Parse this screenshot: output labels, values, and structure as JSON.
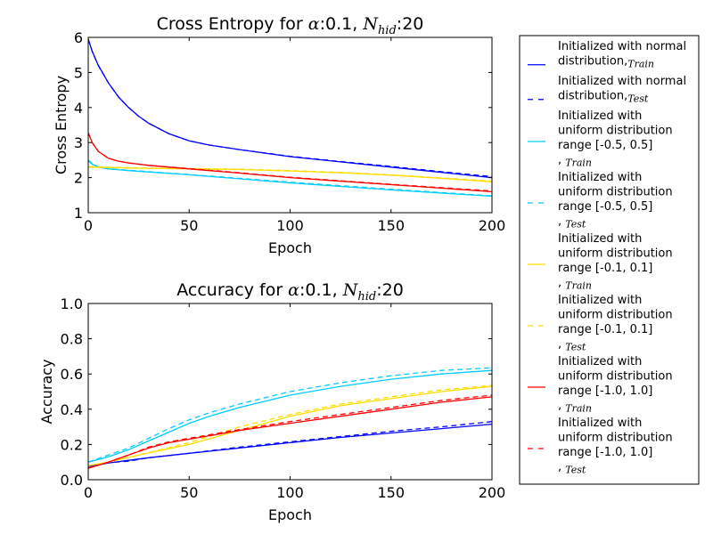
{
  "chart_data": [
    {
      "type": "line",
      "title": "Cross Entropy for α:0.1, N_hid:20",
      "title_parts": {
        "prefix": "Cross Entropy for ",
        "alpha_symbol": "α",
        "alpha_value": ":0.1, ",
        "n_symbol": "N",
        "n_subscript": "hid",
        "n_value": ":20"
      },
      "xlabel": "Epoch",
      "ylabel": "Cross Entropy",
      "xlim": [
        0,
        200
      ],
      "ylim": [
        1,
        6
      ],
      "xticks": [
        0,
        50,
        100,
        150,
        200
      ],
      "yticks": [
        1,
        2,
        3,
        4,
        5,
        6
      ],
      "xtick_labels": [
        "0",
        "50",
        "100",
        "150",
        "200"
      ],
      "ytick_labels": [
        "1",
        "2",
        "3",
        "4",
        "5",
        "6"
      ],
      "grid": false,
      "series": [
        {
          "key": "normal_train",
          "dashed": false,
          "color": "#0000ff",
          "x": [
            0,
            2,
            5,
            10,
            15,
            20,
            25,
            30,
            40,
            50,
            60,
            75,
            100,
            125,
            150,
            175,
            200
          ],
          "y": [
            5.95,
            5.6,
            5.2,
            4.7,
            4.3,
            4.0,
            3.75,
            3.55,
            3.25,
            3.05,
            2.93,
            2.8,
            2.6,
            2.45,
            2.3,
            2.15,
            2.0
          ]
        },
        {
          "key": "normal_test",
          "dashed": true,
          "color": "#0000ff",
          "x": [
            0,
            2,
            5,
            10,
            15,
            20,
            25,
            30,
            40,
            50,
            60,
            75,
            100,
            125,
            150,
            175,
            200
          ],
          "y": [
            5.95,
            5.6,
            5.2,
            4.7,
            4.3,
            4.0,
            3.75,
            3.55,
            3.25,
            3.05,
            2.93,
            2.8,
            2.61,
            2.46,
            2.32,
            2.17,
            2.03
          ]
        },
        {
          "key": "u05_train",
          "dashed": false,
          "color": "#00ccff",
          "x": [
            0,
            2,
            5,
            10,
            20,
            50,
            100,
            150,
            200
          ],
          "y": [
            2.48,
            2.38,
            2.3,
            2.25,
            2.2,
            2.08,
            1.85,
            1.65,
            1.47
          ]
        },
        {
          "key": "u05_test",
          "dashed": true,
          "color": "#00ccff",
          "x": [
            0,
            2,
            5,
            10,
            20,
            50,
            100,
            150,
            200
          ],
          "y": [
            2.5,
            2.4,
            2.31,
            2.26,
            2.21,
            2.09,
            1.87,
            1.67,
            1.48
          ]
        },
        {
          "key": "u01_train",
          "dashed": false,
          "color": "#ffdd00",
          "x": [
            0,
            10,
            25,
            50,
            75,
            100,
            125,
            150,
            175,
            200
          ],
          "y": [
            2.3,
            2.29,
            2.27,
            2.25,
            2.23,
            2.19,
            2.14,
            2.07,
            1.98,
            1.88
          ]
        },
        {
          "key": "u01_test",
          "dashed": true,
          "color": "#ffdd00",
          "x": [
            0,
            10,
            25,
            50,
            75,
            100,
            125,
            150,
            175,
            200
          ],
          "y": [
            2.31,
            2.3,
            2.28,
            2.26,
            2.24,
            2.2,
            2.15,
            2.08,
            1.99,
            1.9
          ]
        },
        {
          "key": "u10_train",
          "dashed": false,
          "color": "#ff0000",
          "x": [
            0,
            2,
            5,
            10,
            15,
            20,
            30,
            50,
            75,
            100,
            150,
            200
          ],
          "y": [
            3.28,
            3.0,
            2.75,
            2.55,
            2.47,
            2.42,
            2.35,
            2.25,
            2.13,
            2.0,
            1.8,
            1.6
          ]
        },
        {
          "key": "u10_test",
          "dashed": true,
          "color": "#ff0000",
          "x": [
            0,
            2,
            5,
            10,
            15,
            20,
            30,
            50,
            75,
            100,
            150,
            200
          ],
          "y": [
            3.28,
            3.0,
            2.75,
            2.55,
            2.47,
            2.42,
            2.35,
            2.26,
            2.14,
            2.01,
            1.81,
            1.62
          ]
        }
      ]
    },
    {
      "type": "line",
      "title": "Accuracy for α:0.1, N_hid:20",
      "title_parts": {
        "prefix": "Accuracy for ",
        "alpha_symbol": "α",
        "alpha_value": ":0.1, ",
        "n_symbol": "N",
        "n_subscript": "hid",
        "n_value": ":20"
      },
      "xlabel": "Epoch",
      "ylabel": "Accuracy",
      "xlim": [
        0,
        200
      ],
      "ylim": [
        0.0,
        1.0
      ],
      "xticks": [
        0,
        50,
        100,
        150,
        200
      ],
      "yticks": [
        0.0,
        0.2,
        0.4,
        0.6,
        0.8,
        1.0
      ],
      "xtick_labels": [
        "0",
        "50",
        "100",
        "150",
        "200"
      ],
      "ytick_labels": [
        "0.0",
        "0.2",
        "0.4",
        "0.6",
        "0.8",
        "1.0"
      ],
      "grid": false,
      "series": [
        {
          "key": "normal_train",
          "dashed": false,
          "color": "#0000ff",
          "x": [
            0,
            10,
            20,
            30,
            50,
            75,
            100,
            125,
            150,
            175,
            200
          ],
          "y": [
            0.075,
            0.095,
            0.11,
            0.125,
            0.15,
            0.18,
            0.21,
            0.24,
            0.265,
            0.29,
            0.315
          ]
        },
        {
          "key": "normal_test",
          "dashed": true,
          "color": "#0000ff",
          "x": [
            0,
            10,
            20,
            30,
            50,
            75,
            100,
            125,
            150,
            175,
            200
          ],
          "y": [
            0.075,
            0.097,
            0.105,
            0.125,
            0.15,
            0.185,
            0.215,
            0.245,
            0.275,
            0.3,
            0.33
          ]
        },
        {
          "key": "u05_train",
          "dashed": false,
          "color": "#00ccff",
          "x": [
            0,
            10,
            20,
            30,
            40,
            50,
            60,
            75,
            100,
            125,
            150,
            175,
            200
          ],
          "y": [
            0.1,
            0.13,
            0.17,
            0.22,
            0.27,
            0.32,
            0.36,
            0.41,
            0.48,
            0.53,
            0.57,
            0.6,
            0.62
          ]
        },
        {
          "key": "u05_test",
          "dashed": true,
          "color": "#00ccff",
          "x": [
            0,
            10,
            20,
            30,
            40,
            50,
            60,
            75,
            100,
            125,
            150,
            175,
            200
          ],
          "y": [
            0.1,
            0.14,
            0.18,
            0.235,
            0.29,
            0.34,
            0.38,
            0.43,
            0.5,
            0.55,
            0.59,
            0.62,
            0.635
          ]
        },
        {
          "key": "u01_train",
          "dashed": false,
          "color": "#ffdd00",
          "x": [
            0,
            10,
            25,
            50,
            75,
            100,
            125,
            150,
            175,
            200
          ],
          "y": [
            0.08,
            0.1,
            0.14,
            0.2,
            0.28,
            0.36,
            0.42,
            0.46,
            0.5,
            0.53
          ]
        },
        {
          "key": "u01_test",
          "dashed": true,
          "color": "#ffdd00",
          "x": [
            0,
            10,
            25,
            50,
            75,
            100,
            125,
            150,
            175,
            200
          ],
          "y": [
            0.08,
            0.1,
            0.14,
            0.21,
            0.3,
            0.37,
            0.43,
            0.47,
            0.51,
            0.535
          ]
        },
        {
          "key": "u10_train",
          "dashed": false,
          "color": "#ff0000",
          "x": [
            0,
            10,
            20,
            30,
            40,
            50,
            75,
            100,
            125,
            150,
            175,
            200
          ],
          "y": [
            0.065,
            0.1,
            0.14,
            0.18,
            0.21,
            0.23,
            0.28,
            0.32,
            0.36,
            0.4,
            0.44,
            0.47
          ]
        },
        {
          "key": "u10_test",
          "dashed": true,
          "color": "#ff0000",
          "x": [
            0,
            10,
            20,
            30,
            40,
            50,
            75,
            100,
            125,
            150,
            175,
            200
          ],
          "y": [
            0.065,
            0.1,
            0.14,
            0.185,
            0.215,
            0.235,
            0.285,
            0.33,
            0.37,
            0.41,
            0.45,
            0.48
          ]
        }
      ]
    }
  ],
  "legend": {
    "placement": "right",
    "entries": [
      {
        "key": "normal_train",
        "color": "#0000ff",
        "dashed": false,
        "lines": [
          "Initialized with normal",
          "distribution"
        ],
        "subscript": "Train"
      },
      {
        "key": "normal_test",
        "color": "#0000ff",
        "dashed": true,
        "lines": [
          "Initialized with normal",
          "distribution"
        ],
        "subscript": "Test"
      },
      {
        "key": "u05_train",
        "color": "#00ccff",
        "dashed": false,
        "lines": [
          "Initialized with",
          "uniform distribution",
          " range [-0.5, 0.5]"
        ],
        "subscript": "Train"
      },
      {
        "key": "u05_test",
        "color": "#00ccff",
        "dashed": true,
        "lines": [
          "Initialized with",
          "uniform distribution",
          " range [-0.5, 0.5]"
        ],
        "subscript": "Test"
      },
      {
        "key": "u01_train",
        "color": "#ffdd00",
        "dashed": false,
        "lines": [
          "Initialized with",
          "uniform distribution",
          " range [-0.1, 0.1]"
        ],
        "subscript": "Train"
      },
      {
        "key": "u01_test",
        "color": "#ffdd00",
        "dashed": true,
        "lines": [
          "Initialized with",
          "uniform distribution",
          " range [-0.1, 0.1]"
        ],
        "subscript": "Test"
      },
      {
        "key": "u10_train",
        "color": "#ff0000",
        "dashed": false,
        "lines": [
          "Initialized with",
          "uniform distribution",
          " range [-1.0, 1.0]"
        ],
        "subscript": "Train"
      },
      {
        "key": "u10_test",
        "color": "#ff0000",
        "dashed": true,
        "lines": [
          "Initialized with",
          "uniform distribution",
          " range [-1.0, 1.0]"
        ],
        "subscript": "Test"
      }
    ]
  }
}
